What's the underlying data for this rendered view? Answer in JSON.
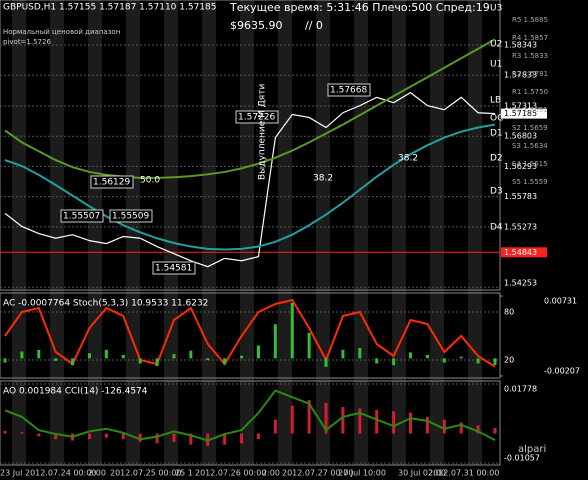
{
  "header": {
    "symbol": "GBPUSD,H1  1.57155 1.57187 1.57110 1.57185",
    "status": "Текущее время: 5:31:46 Плечо:500 Спред:19",
    "balance": "$9635.90",
    "extra": "// 0",
    "range_note": "Нормальный ценовой диапазон",
    "pivot": "pivot=1.5726",
    "brand": "alpari"
  },
  "pivot_levels": [
    "U3",
    "U2",
    "U1",
    "LB",
    "D1",
    "D2",
    "D3",
    "D4"
  ],
  "pivot_prices": [
    "R5 1.5885",
    "R4 1.5857",
    "R3 1.5833",
    "R2 1.5781",
    "R1 1.5750",
    "S1 1.5691",
    "S2 1.5659",
    "S3 1.5634",
    "S4 1.5615",
    "S5 1.5559"
  ],
  "annotations": [
    "1.57668",
    "1.57226",
    "1.56129",
    "50.0",
    "1.55507",
    "1.55509",
    "1.54581",
    "38.2",
    "38.2",
    "Выдупление М Дяти",
    "OC"
  ],
  "time_labels": [
    "23 Jul",
    "2012.07.24 00:00",
    "2:00",
    "2012.07.25 00:00",
    "25 1",
    "2012.07.26 00:00",
    "2:00",
    "2012.07.27 00:00",
    "27 Jul 10:00",
    "30 Jul 02:00",
    "2012.07.31 00:00"
  ],
  "chart_data": [
    {
      "type": "line",
      "ylim": [
        1.5424,
        1.5907
      ],
      "yticks": [
        1.58343,
        1.57833,
        1.57313,
        1.56803,
        1.56293,
        1.55783,
        1.55273,
        1.54253
      ],
      "last_price": 1.57185,
      "hline": 1.54843,
      "hline_color": "#ff2020",
      "series": [
        {
          "color": "#ffffff",
          "values": [
            1.555,
            1.5528,
            1.5516,
            1.5508,
            1.5514,
            1.5504,
            1.5499,
            1.5511,
            1.5508,
            1.5494,
            1.5482,
            1.547,
            1.546,
            1.5474,
            1.547,
            1.5477,
            1.5678,
            1.5717,
            1.5712,
            1.5695,
            1.572,
            1.5732,
            1.5746,
            1.5737,
            1.5754,
            1.5732,
            1.5725,
            1.5746,
            1.572,
            1.57185
          ]
        },
        {
          "color": "#20a0a0",
          "values": [
            1.564,
            1.563,
            1.5615,
            1.5598,
            1.558,
            1.5562,
            1.5545,
            1.553,
            1.5518,
            1.5508,
            1.55,
            1.5494,
            1.549,
            1.5489,
            1.549,
            1.5494,
            1.5502,
            1.5514,
            1.553,
            1.5548,
            1.5568,
            1.559,
            1.5612,
            1.5632,
            1.565,
            1.5665,
            1.5678,
            1.5688,
            1.5695,
            1.57
          ]
        },
        {
          "color": "#5a9a20",
          "values": [
            1.569,
            1.567,
            1.5655,
            1.564,
            1.5628,
            1.562,
            1.5615,
            1.5612,
            1.561,
            1.561,
            1.5611,
            1.5613,
            1.5616,
            1.562,
            1.5626,
            1.5634,
            1.5644,
            1.5656,
            1.567,
            1.5685,
            1.57,
            1.5716,
            1.5732,
            1.5748,
            1.5764,
            1.578,
            1.5796,
            1.5812,
            1.5828,
            1.5844
          ]
        }
      ]
    },
    {
      "type": "line",
      "title": "AC -0.0007764  Stoch(5,3,3) 10.9533 11.6232",
      "ylim": [
        0,
        100
      ],
      "yticks": [
        80,
        20
      ],
      "y2lim": [
        -0.00207,
        0.00731
      ],
      "y2ticks": [
        0.00731,
        -0.00207
      ],
      "series": [
        {
          "color": "#ff2a00",
          "values": [
            50,
            80,
            85,
            30,
            15,
            60,
            85,
            75,
            20,
            15,
            70,
            85,
            40,
            15,
            50,
            80,
            90,
            95,
            60,
            20,
            75,
            80,
            40,
            25,
            70,
            65,
            30,
            50,
            25,
            11.6232
          ]
        },
        {
          "color": "#30c030",
          "axis": "y2",
          "bar": true,
          "values": [
            -0.0005,
            0.0008,
            0.001,
            -0.0003,
            -0.0008,
            0.0006,
            0.001,
            0.0004,
            -0.0006,
            -0.0009,
            0.0005,
            0.0009,
            -0.0002,
            -0.0007,
            0.0003,
            0.0015,
            0.004,
            0.0065,
            0.003,
            -0.001,
            0.001,
            0.0012,
            -0.0006,
            -0.0008,
            0.0007,
            0.0004,
            -0.0005,
            0.0002,
            -0.0006,
            -0.0007764
          ]
        }
      ]
    },
    {
      "type": "line",
      "title": "AO 0.001984  CCI(14) -126.4574",
      "ylim": [
        -0.01057,
        0.01778
      ],
      "yticks": [
        0.01778,
        -0.01057
      ],
      "y2lim": [
        -300,
        300
      ],
      "series": [
        {
          "color": "#d02030",
          "bar": true,
          "values": [
            0.001,
            0.0005,
            -0.001,
            -0.002,
            -0.0025,
            -0.002,
            -0.0015,
            -0.002,
            -0.003,
            -0.0035,
            -0.003,
            -0.004,
            -0.0045,
            -0.004,
            -0.0035,
            -0.002,
            0.005,
            0.01,
            0.012,
            0.011,
            0.0095,
            0.009,
            0.0085,
            0.008,
            0.0075,
            0.006,
            0.005,
            0.004,
            0.003,
            0.001984
          ]
        },
        {
          "color": "#2a8a10",
          "axis": "y2",
          "values": [
            100,
            50,
            -50,
            -80,
            -100,
            -60,
            -40,
            -70,
            -120,
            -100,
            -60,
            -90,
            -130,
            -80,
            -50,
            80,
            250,
            200,
            150,
            -50,
            50,
            80,
            30,
            -20,
            40,
            20,
            -40,
            -10,
            -60,
            -126.4574
          ]
        }
      ]
    }
  ]
}
